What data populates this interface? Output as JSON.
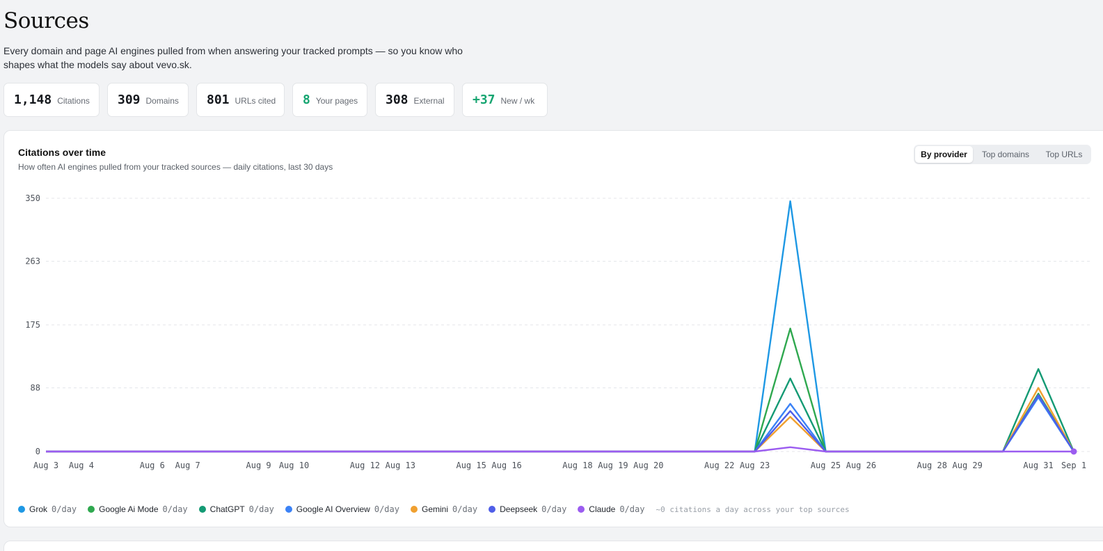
{
  "page": {
    "title": "Sources",
    "subtitle": "Every domain and page AI engines pulled from when answering your tracked prompts — so you know who shapes what the models say about vevo.sk."
  },
  "stats": [
    {
      "value": "1,148",
      "label": "Citations",
      "highlight": false
    },
    {
      "value": "309",
      "label": "Domains",
      "highlight": false
    },
    {
      "value": "801",
      "label": "URLs cited",
      "highlight": false
    },
    {
      "value": "8",
      "label": "Your pages",
      "highlight": true
    },
    {
      "value": "308",
      "label": "External",
      "highlight": false
    },
    {
      "value": "+37",
      "label": "New / wk",
      "highlight": true
    }
  ],
  "chart_card": {
    "title": "Citations over time",
    "subtitle": "How often AI engines pulled from your tracked sources — daily citations, last 30 days",
    "tabs": [
      {
        "label": "By provider",
        "active": true
      },
      {
        "label": "Top domains",
        "active": false
      },
      {
        "label": "Top URLs",
        "active": false
      }
    ],
    "legend_note": "~0 citations a day across your top sources"
  },
  "chart_data": {
    "type": "line",
    "x": [
      "Aug 3",
      "Aug 4",
      "Aug 5",
      "Aug 6",
      "Aug 7",
      "Aug 8",
      "Aug 9",
      "Aug 10",
      "Aug 11",
      "Aug 12",
      "Aug 13",
      "Aug 14",
      "Aug 15",
      "Aug 16",
      "Aug 17",
      "Aug 18",
      "Aug 19",
      "Aug 20",
      "Aug 21",
      "Aug 22",
      "Aug 23",
      "Aug 24",
      "Aug 25",
      "Aug 26",
      "Aug 27",
      "Aug 28",
      "Aug 29",
      "Aug 30",
      "Aug 31",
      "Sep 1"
    ],
    "x_tick_labels": [
      "Aug 3",
      "Aug 4",
      "Aug 6",
      "Aug 7",
      "Aug 9",
      "Aug 10",
      "Aug 12",
      "Aug 13",
      "Aug 15",
      "Aug 16",
      "Aug 18",
      "Aug 19",
      "Aug 20",
      "Aug 22",
      "Aug 23",
      "Aug 25",
      "Aug 26",
      "Aug 28",
      "Aug 29",
      "Aug 31",
      "Sep 1"
    ],
    "y_ticks": [
      0,
      88,
      175,
      263,
      350
    ],
    "ylim": [
      0,
      350
    ],
    "grid": true,
    "legend_position": "bottom",
    "series": [
      {
        "name": "Grok",
        "color": "#1e98e4",
        "rate": "0/day",
        "values": [
          0,
          0,
          0,
          0,
          0,
          0,
          0,
          0,
          0,
          0,
          0,
          0,
          0,
          0,
          0,
          0,
          0,
          0,
          0,
          0,
          0,
          346,
          0,
          0,
          0,
          0,
          0,
          0,
          75,
          0
        ]
      },
      {
        "name": "Google Ai Mode",
        "color": "#2fa84f",
        "rate": "0/day",
        "values": [
          0,
          0,
          0,
          0,
          0,
          0,
          0,
          0,
          0,
          0,
          0,
          0,
          0,
          0,
          0,
          0,
          0,
          0,
          0,
          0,
          0,
          170,
          0,
          0,
          0,
          0,
          0,
          0,
          80,
          0
        ]
      },
      {
        "name": "ChatGPT",
        "color": "#149a74",
        "rate": "0/day",
        "values": [
          0,
          0,
          0,
          0,
          0,
          0,
          0,
          0,
          0,
          0,
          0,
          0,
          0,
          0,
          0,
          0,
          0,
          0,
          0,
          0,
          0,
          101,
          0,
          0,
          0,
          0,
          0,
          0,
          114,
          0
        ]
      },
      {
        "name": "Google AI Overview",
        "color": "#3b82f6",
        "rate": "0/day",
        "values": [
          0,
          0,
          0,
          0,
          0,
          0,
          0,
          0,
          0,
          0,
          0,
          0,
          0,
          0,
          0,
          0,
          0,
          0,
          0,
          0,
          0,
          66,
          0,
          0,
          0,
          0,
          0,
          0,
          75,
          0
        ]
      },
      {
        "name": "Gemini",
        "color": "#f0a030",
        "rate": "0/day",
        "values": [
          0,
          0,
          0,
          0,
          0,
          0,
          0,
          0,
          0,
          0,
          0,
          0,
          0,
          0,
          0,
          0,
          0,
          0,
          0,
          0,
          0,
          48,
          0,
          0,
          0,
          0,
          0,
          0,
          88,
          0
        ]
      },
      {
        "name": "Deepseek",
        "color": "#4f5ee8",
        "rate": "0/day",
        "values": [
          0,
          0,
          0,
          0,
          0,
          0,
          0,
          0,
          0,
          0,
          0,
          0,
          0,
          0,
          0,
          0,
          0,
          0,
          0,
          0,
          0,
          56,
          0,
          0,
          0,
          0,
          0,
          0,
          78,
          0
        ]
      },
      {
        "name": "Claude",
        "color": "#9b5cf0",
        "rate": "0/day",
        "values": [
          0,
          0,
          0,
          0,
          0,
          0,
          0,
          0,
          0,
          0,
          0,
          0,
          0,
          0,
          0,
          0,
          0,
          0,
          0,
          0,
          0,
          6,
          0,
          0,
          0,
          0,
          0,
          0,
          0,
          0
        ]
      }
    ]
  }
}
